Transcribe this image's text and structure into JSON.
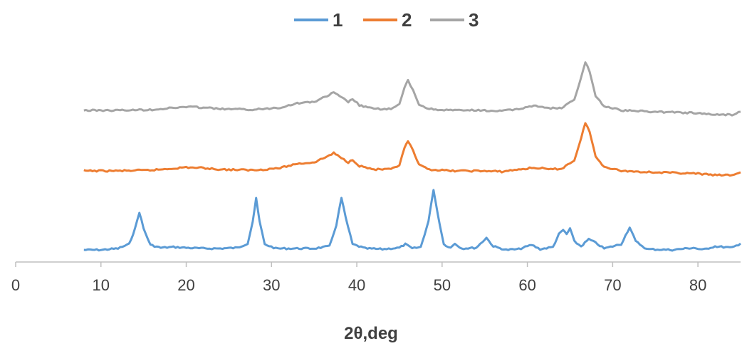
{
  "chart_data": {
    "type": "line",
    "title": "",
    "xlabel": "2θ,deg",
    "ylabel": "",
    "xlim": [
      0,
      85
    ],
    "x_ticks": [
      "0",
      "10",
      "20",
      "30",
      "40",
      "50",
      "60",
      "70",
      "80"
    ],
    "y_axis_visible": false,
    "grid": false,
    "legend_position": "top",
    "y_units": "arbitrary intensity (stacked patterns)",
    "series": [
      {
        "name": "1",
        "color": "#5B9BD5",
        "points": [
          [
            8,
            0
          ],
          [
            10,
            0
          ],
          [
            12,
            2
          ],
          [
            13.3,
            8
          ],
          [
            14,
            30
          ],
          [
            14.5,
            53
          ],
          [
            15,
            30
          ],
          [
            15.8,
            7
          ],
          [
            17,
            3
          ],
          [
            18.5,
            4
          ],
          [
            20,
            3
          ],
          [
            22,
            2
          ],
          [
            24,
            2
          ],
          [
            26,
            3
          ],
          [
            27.2,
            9
          ],
          [
            27.8,
            40
          ],
          [
            28.2,
            72
          ],
          [
            28.6,
            40
          ],
          [
            29.2,
            8
          ],
          [
            30.5,
            2
          ],
          [
            33,
            2
          ],
          [
            35,
            2
          ],
          [
            36.8,
            5
          ],
          [
            37.6,
            35
          ],
          [
            38.2,
            73
          ],
          [
            38.7,
            45
          ],
          [
            39.5,
            8
          ],
          [
            41,
            2
          ],
          [
            43,
            1
          ],
          [
            45,
            3
          ],
          [
            45.7,
            8
          ],
          [
            46.5,
            2
          ],
          [
            47.5,
            4
          ],
          [
            48.4,
            40
          ],
          [
            49,
            85
          ],
          [
            49.5,
            50
          ],
          [
            50.2,
            8
          ],
          [
            51,
            3
          ],
          [
            51.5,
            9
          ],
          [
            52.3,
            2
          ],
          [
            54,
            3
          ],
          [
            55.2,
            17
          ],
          [
            56,
            5
          ],
          [
            57.5,
            0
          ],
          [
            59,
            1
          ],
          [
            60.5,
            7
          ],
          [
            61.5,
            1
          ],
          [
            63,
            4
          ],
          [
            63.7,
            22
          ],
          [
            64.2,
            28
          ],
          [
            64.6,
            22
          ],
          [
            65,
            30
          ],
          [
            65.5,
            12
          ],
          [
            66.3,
            5
          ],
          [
            67.2,
            15
          ],
          [
            68,
            10
          ],
          [
            69,
            2
          ],
          [
            71,
            8
          ],
          [
            72,
            32
          ],
          [
            72.7,
            12
          ],
          [
            74,
            1
          ],
          [
            77,
            0
          ],
          [
            79.5,
            3
          ],
          [
            80.5,
            0
          ],
          [
            82,
            5
          ],
          [
            84,
            3
          ],
          [
            85,
            9
          ]
        ]
      },
      {
        "name": "2",
        "color": "#ED7D31",
        "points": [
          [
            8,
            0
          ],
          [
            12,
            0
          ],
          [
            16,
            1
          ],
          [
            18,
            3
          ],
          [
            20,
            5
          ],
          [
            22,
            4
          ],
          [
            24,
            2
          ],
          [
            28,
            1
          ],
          [
            31,
            4
          ],
          [
            33,
            10
          ],
          [
            35,
            12
          ],
          [
            36.5,
            20
          ],
          [
            37.3,
            25
          ],
          [
            38.2,
            18
          ],
          [
            39,
            12
          ],
          [
            39.5,
            16
          ],
          [
            40.3,
            7
          ],
          [
            42,
            2
          ],
          [
            44,
            2
          ],
          [
            45,
            8
          ],
          [
            45.6,
            32
          ],
          [
            46,
            42
          ],
          [
            46.6,
            28
          ],
          [
            47.3,
            8
          ],
          [
            48.5,
            2
          ],
          [
            51,
            0
          ],
          [
            54,
            0
          ],
          [
            57,
            -1
          ],
          [
            59,
            2
          ],
          [
            60.5,
            4
          ],
          [
            61.5,
            4
          ],
          [
            62.5,
            2
          ],
          [
            64,
            3
          ],
          [
            65.5,
            15
          ],
          [
            66.3,
            45
          ],
          [
            66.8,
            68
          ],
          [
            67.3,
            55
          ],
          [
            68,
            20
          ],
          [
            69,
            6
          ],
          [
            71,
            0
          ],
          [
            75,
            -2
          ],
          [
            78,
            -3
          ],
          [
            80,
            -4
          ],
          [
            82,
            -6
          ],
          [
            84,
            -6
          ],
          [
            85,
            -2
          ]
        ]
      },
      {
        "name": "3",
        "color": "#A5A5A5",
        "points": [
          [
            8,
            0
          ],
          [
            12,
            0
          ],
          [
            16,
            1
          ],
          [
            18,
            3
          ],
          [
            20,
            5
          ],
          [
            22,
            4
          ],
          [
            24,
            2
          ],
          [
            28,
            1
          ],
          [
            31,
            4
          ],
          [
            33,
            10
          ],
          [
            35,
            12
          ],
          [
            36.5,
            20
          ],
          [
            37.3,
            25
          ],
          [
            38.2,
            18
          ],
          [
            39,
            12
          ],
          [
            39.5,
            16
          ],
          [
            40.3,
            7
          ],
          [
            42,
            2
          ],
          [
            44,
            2
          ],
          [
            45,
            8
          ],
          [
            45.6,
            32
          ],
          [
            46,
            42
          ],
          [
            46.6,
            28
          ],
          [
            47.3,
            8
          ],
          [
            48.5,
            2
          ],
          [
            51,
            0
          ],
          [
            54,
            0
          ],
          [
            57,
            -1
          ],
          [
            59,
            2
          ],
          [
            60.5,
            6
          ],
          [
            61.5,
            6
          ],
          [
            62.5,
            3
          ],
          [
            64,
            3
          ],
          [
            65.5,
            15
          ],
          [
            66.3,
            45
          ],
          [
            66.8,
            68
          ],
          [
            67.3,
            55
          ],
          [
            68,
            20
          ],
          [
            69,
            6
          ],
          [
            71,
            0
          ],
          [
            75,
            -2
          ],
          [
            78,
            -3
          ],
          [
            80,
            -4
          ],
          [
            82,
            -6
          ],
          [
            84,
            -6
          ],
          [
            85,
            -2
          ]
        ]
      }
    ]
  }
}
